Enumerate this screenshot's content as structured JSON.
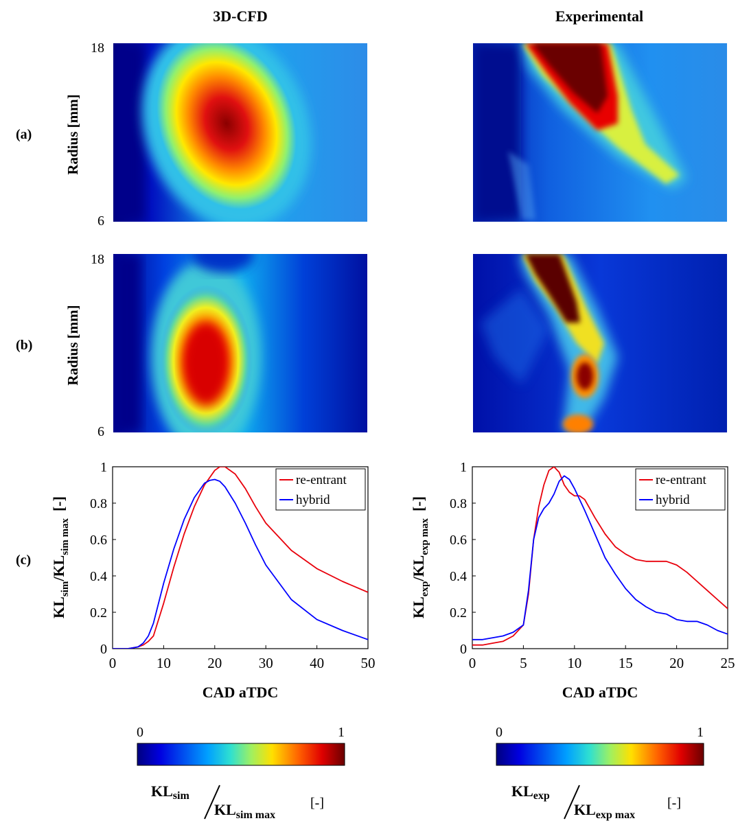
{
  "column_titles": [
    "3D-CFD",
    "Experimental"
  ],
  "row_labels": [
    "(a)",
    "(b)",
    "(c)"
  ],
  "heatmaps": {
    "ylabel": "Radius [mm]",
    "y_ticks": [
      "18",
      "6"
    ],
    "colormap": "jet",
    "panels": [
      {
        "row": "(a)",
        "column": "3D-CFD"
      },
      {
        "row": "(a)",
        "column": "Experimental"
      },
      {
        "row": "(b)",
        "column": "3D-CFD"
      },
      {
        "row": "(b)",
        "column": "Experimental"
      }
    ]
  },
  "colorbars": [
    {
      "min_label": "0",
      "max_label": "1",
      "label_num": "KL",
      "label_num_sub": "sim",
      "label_den": "KL",
      "label_den_sub": "sim max",
      "label_unit": "[-]"
    },
    {
      "min_label": "0",
      "max_label": "1",
      "label_num": "KL",
      "label_num_sub": "exp",
      "label_den": "KL",
      "label_den_sub": "exp max",
      "label_unit": "[-]"
    }
  ],
  "colors": {
    "re-entrant": "#e8000b",
    "hybrid": "#0000ff"
  },
  "chart_data": [
    {
      "type": "line",
      "xlabel": "CAD aTDC",
      "ylabel_main": "KL",
      "ylabel_sub": "sim",
      "ylabel_den": "/KL",
      "ylabel_den_sub": "sim max",
      "ylabel_unit": "[-]",
      "xlim": [
        0,
        50
      ],
      "ylim": [
        0,
        1
      ],
      "xticks": [
        0,
        10,
        20,
        30,
        40,
        50
      ],
      "yticks": [
        0,
        0.2,
        0.4,
        0.6,
        0.8,
        1
      ],
      "ytick_labels": [
        "0",
        "0.2",
        "0.4",
        "0.6",
        "0.8",
        "1"
      ],
      "legend_position": "top-right",
      "series": [
        {
          "name": "re-entrant",
          "x": [
            0,
            3,
            4,
            5,
            6,
            7,
            8,
            10,
            12,
            14,
            16,
            18,
            20,
            21,
            22,
            24,
            26,
            28,
            30,
            35,
            40,
            45,
            50
          ],
          "y": [
            0,
            0,
            0.005,
            0.01,
            0.02,
            0.04,
            0.07,
            0.25,
            0.45,
            0.63,
            0.78,
            0.9,
            0.98,
            1.0,
            1.0,
            0.96,
            0.88,
            0.78,
            0.69,
            0.54,
            0.44,
            0.37,
            0.31
          ]
        },
        {
          "name": "hybrid",
          "x": [
            0,
            3,
            4,
            5,
            6,
            7,
            8,
            10,
            12,
            14,
            16,
            18,
            19,
            20,
            21,
            22,
            24,
            26,
            28,
            30,
            35,
            40,
            45,
            50
          ],
          "y": [
            0,
            0,
            0.005,
            0.01,
            0.03,
            0.07,
            0.14,
            0.36,
            0.55,
            0.71,
            0.83,
            0.91,
            0.925,
            0.93,
            0.92,
            0.89,
            0.8,
            0.69,
            0.57,
            0.46,
            0.27,
            0.16,
            0.1,
            0.05
          ]
        }
      ]
    },
    {
      "type": "line",
      "xlabel": "CAD aTDC",
      "ylabel_main": "KL",
      "ylabel_sub": "exp",
      "ylabel_den": "/KL",
      "ylabel_den_sub": "exp max",
      "ylabel_unit": "[-]",
      "xlim": [
        0,
        25
      ],
      "ylim": [
        0,
        1
      ],
      "xticks": [
        0,
        5,
        10,
        15,
        20,
        25
      ],
      "yticks": [
        0,
        0.2,
        0.4,
        0.6,
        0.8,
        1
      ],
      "ytick_labels": [
        "0",
        "0.2",
        "0.4",
        "0.6",
        "0.8",
        "1"
      ],
      "legend_position": "top-right",
      "series": [
        {
          "name": "re-entrant",
          "x": [
            0,
            1,
            2,
            3,
            4,
            5,
            5.5,
            6,
            6.5,
            7,
            7.5,
            8,
            8.5,
            9,
            9.5,
            10,
            10.5,
            11,
            12,
            13,
            14,
            15,
            16,
            17,
            18,
            19,
            20,
            21,
            22,
            23,
            24,
            25
          ],
          "y": [
            0.02,
            0.02,
            0.03,
            0.04,
            0.07,
            0.13,
            0.3,
            0.6,
            0.78,
            0.9,
            0.98,
            1.0,
            0.97,
            0.9,
            0.86,
            0.84,
            0.84,
            0.82,
            0.72,
            0.63,
            0.56,
            0.52,
            0.49,
            0.48,
            0.48,
            0.48,
            0.46,
            0.42,
            0.37,
            0.32,
            0.27,
            0.22
          ]
        },
        {
          "name": "hybrid",
          "x": [
            0,
            1,
            2,
            3,
            4,
            5,
            5.5,
            6,
            6.5,
            7,
            7.5,
            8,
            8.5,
            9,
            9.5,
            10,
            11,
            12,
            13,
            14,
            15,
            16,
            17,
            18,
            19,
            20,
            21,
            22,
            23,
            24,
            25
          ],
          "y": [
            0.05,
            0.05,
            0.06,
            0.07,
            0.09,
            0.13,
            0.32,
            0.6,
            0.72,
            0.77,
            0.8,
            0.85,
            0.92,
            0.95,
            0.93,
            0.88,
            0.76,
            0.63,
            0.5,
            0.41,
            0.33,
            0.27,
            0.23,
            0.2,
            0.19,
            0.16,
            0.15,
            0.15,
            0.13,
            0.1,
            0.08
          ]
        }
      ]
    }
  ]
}
